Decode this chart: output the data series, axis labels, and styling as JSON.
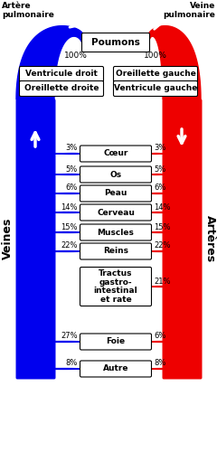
{
  "title_left": "Artère\npulmonaire",
  "title_right": "Veine\npulmonaire",
  "label_veines": "Veines",
  "label_arteres": "Artères",
  "top_box": "Poumons",
  "left_boxes": [
    "Ventricule droit",
    "Oreillette droite"
  ],
  "right_boxes": [
    "Oreillette gauche",
    "Ventricule gauche"
  ],
  "organs": [
    "Cœur",
    "Os",
    "Peau",
    "Cerveau",
    "Muscles",
    "Reins",
    "Tractus\ngastro-\nintestinal\net rate",
    "Foie",
    "Autre"
  ],
  "left_percents": [
    "3%",
    "5%",
    "6%",
    "14%",
    "15%",
    "22%",
    "",
    "27%",
    "8%"
  ],
  "right_percents": [
    "3%",
    "5%",
    "6%",
    "14%",
    "15%",
    "22%",
    "21%",
    "6%",
    "8%"
  ],
  "top_percent_left": "100%",
  "top_percent_right": "100%",
  "blue": "#0000ee",
  "red": "#ee0000",
  "bg": "#ffffff"
}
